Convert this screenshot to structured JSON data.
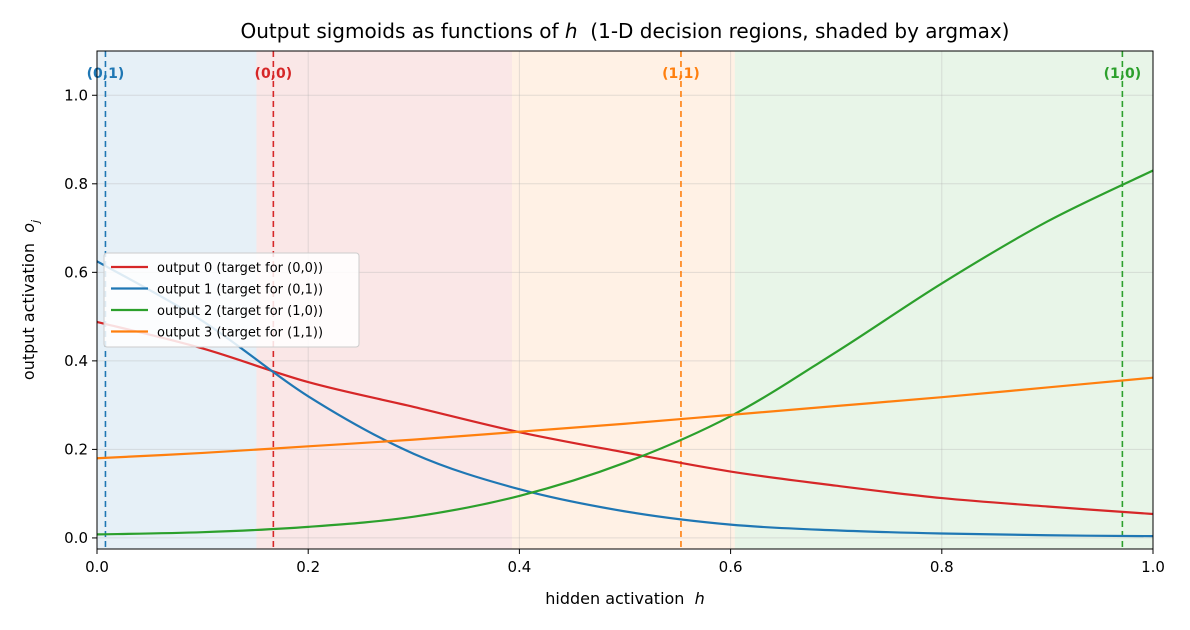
{
  "chart_data": {
    "type": "line",
    "title_parts": {
      "prefix": "Output sigmoids as functions of ",
      "var": "h",
      "suffix": "  (1-D decision regions, shaded by argmax)"
    },
    "xlabel_parts": {
      "text": "hidden activation  ",
      "var": "h"
    },
    "ylabel_parts": {
      "text": "output activation  ",
      "var": "o",
      "sub": "j"
    },
    "xlim": [
      0.0,
      1.0
    ],
    "ylim": [
      -0.025,
      1.1
    ],
    "x_ticks": [
      {
        "value": 0.0,
        "label": "0.0"
      },
      {
        "value": 0.2,
        "label": "0.2"
      },
      {
        "value": 0.4,
        "label": "0.4"
      },
      {
        "value": 0.6,
        "label": "0.6"
      },
      {
        "value": 0.8,
        "label": "0.8"
      },
      {
        "value": 1.0,
        "label": "1.0"
      }
    ],
    "y_ticks": [
      {
        "value": 0.0,
        "label": "0.0"
      },
      {
        "value": 0.2,
        "label": "0.2"
      },
      {
        "value": 0.4,
        "label": "0.4"
      },
      {
        "value": 0.6,
        "label": "0.6"
      },
      {
        "value": 0.8,
        "label": "0.8"
      },
      {
        "value": 1.0,
        "label": "1.0"
      }
    ],
    "grid": true,
    "legend_position": "center-left",
    "regions": [
      {
        "x0": 0.0,
        "x1": 0.151,
        "color": "#1f77b4"
      },
      {
        "x0": 0.151,
        "x1": 0.393,
        "color": "#d62728"
      },
      {
        "x0": 0.393,
        "x1": 0.604,
        "color": "#ff7f0e"
      },
      {
        "x0": 0.604,
        "x1": 1.0,
        "color": "#2ca02c"
      }
    ],
    "markers": [
      {
        "label": "(0,1)",
        "x": 0.008,
        "color": "#1f77b4",
        "anchor": "middle"
      },
      {
        "label": "(0,0)",
        "x": 0.167,
        "color": "#d62728",
        "anchor": "middle"
      },
      {
        "label": "(1,1)",
        "x": 0.553,
        "color": "#ff7f0e",
        "anchor": "middle"
      },
      {
        "label": "(1,0)",
        "x": 0.971,
        "color": "#2ca02c",
        "anchor": "middle"
      }
    ],
    "series": [
      {
        "name": "output 0 (target for (0,0))",
        "color": "#d62728",
        "x": [
          0.0,
          0.1,
          0.2,
          0.3,
          0.4,
          0.5,
          0.6,
          0.7,
          0.8,
          0.9,
          1.0
        ],
        "y": [
          0.488,
          0.428,
          0.352,
          0.296,
          0.239,
          0.193,
          0.15,
          0.118,
          0.09,
          0.071,
          0.054
        ]
      },
      {
        "name": "output 1 (target for (0,1))",
        "color": "#1f77b4",
        "x": [
          0.0,
          0.1,
          0.2,
          0.3,
          0.4,
          0.5,
          0.6,
          0.7,
          0.8,
          0.9,
          1.0
        ],
        "y": [
          0.625,
          0.49,
          0.32,
          0.19,
          0.11,
          0.06,
          0.03,
          0.017,
          0.01,
          0.006,
          0.004
        ]
      },
      {
        "name": "output 2 (target for (1,0))",
        "color": "#2ca02c",
        "x": [
          0.0,
          0.1,
          0.2,
          0.3,
          0.4,
          0.5,
          0.6,
          0.7,
          0.8,
          0.9,
          1.0
        ],
        "y": [
          0.008,
          0.013,
          0.025,
          0.048,
          0.095,
          0.17,
          0.275,
          0.42,
          0.575,
          0.715,
          0.83
        ]
      },
      {
        "name": "output 3 (target for (1,1))",
        "color": "#ff7f0e",
        "x": [
          0.0,
          0.1,
          0.2,
          0.3,
          0.4,
          0.5,
          0.6,
          0.7,
          0.8,
          0.9,
          1.0
        ],
        "y": [
          0.18,
          0.192,
          0.207,
          0.222,
          0.24,
          0.258,
          0.278,
          0.298,
          0.318,
          0.34,
          0.362
        ]
      }
    ]
  }
}
